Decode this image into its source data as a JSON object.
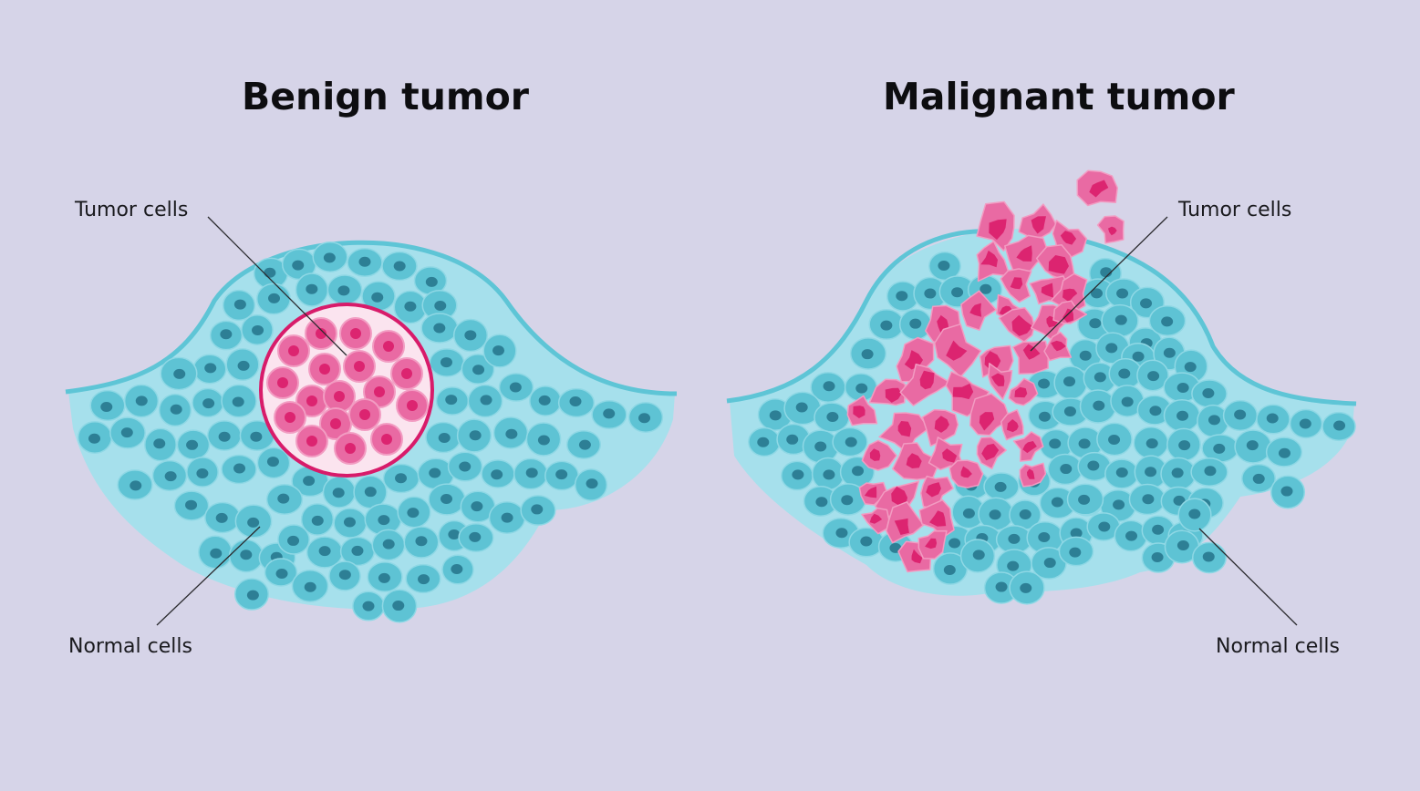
{
  "benign": {
    "title": "Benign tumor",
    "tumor_label": "Tumor cells",
    "normal_label": "Normal cells"
  },
  "malignant": {
    "title": "Malignant tumor",
    "tumor_label": "Tumor cells",
    "normal_label": "Normal cells"
  },
  "colors": {
    "background": "#d6d4e8",
    "tissue": "#a6e0ec",
    "tissue_edge": "#5ec5d6",
    "normal_cell": "#5ec3d4",
    "normal_nucleus": "#2d7f95",
    "tumor_cell": "#e96aa3",
    "tumor_cell_edge": "#f29cc2",
    "tumor_nucleus": "#dc2470",
    "capsule": "#d81b6a"
  }
}
